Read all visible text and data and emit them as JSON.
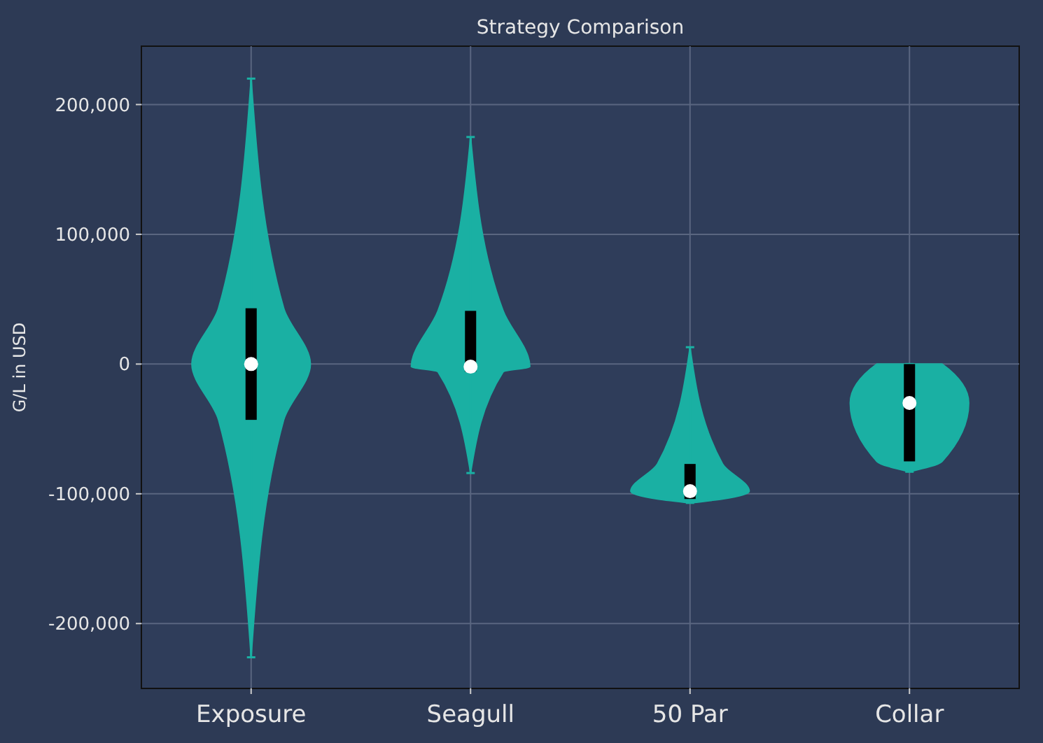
{
  "chart_data": {
    "type": "box",
    "title": "Strategy Comparison",
    "ylabel": "G/L in USD",
    "categories": [
      "Exposure",
      "Seagull",
      "50 Par",
      "Collar"
    ],
    "color": "#1ab0a3",
    "series": [
      {
        "color": "#000000",
        "boxes": [
          {
            "low": -226000,
            "q1": -43000,
            "median": 0,
            "q3": 43000,
            "high": 220000
          },
          {
            "low": -84000,
            "q1": -6000,
            "median": -2000,
            "q3": 41000,
            "high": 175000
          },
          {
            "low": -107000,
            "q1": -104000,
            "median": -98000,
            "q3": -77000,
            "high": 13000
          },
          {
            "low": -83000,
            "q1": -75000,
            "median": -30000,
            "q3": 0,
            "high": 0
          }
        ]
      }
    ],
    "ylim": [
      -250000,
      245000
    ],
    "yticks": [
      {
        "value": -200000,
        "label": "-200,000"
      },
      {
        "value": -100000,
        "label": "-100,000"
      },
      {
        "value": 0,
        "label": "0"
      },
      {
        "value": 100000,
        "label": "100,000"
      },
      {
        "value": 200000,
        "label": "200,000"
      }
    ],
    "grid": true
  }
}
